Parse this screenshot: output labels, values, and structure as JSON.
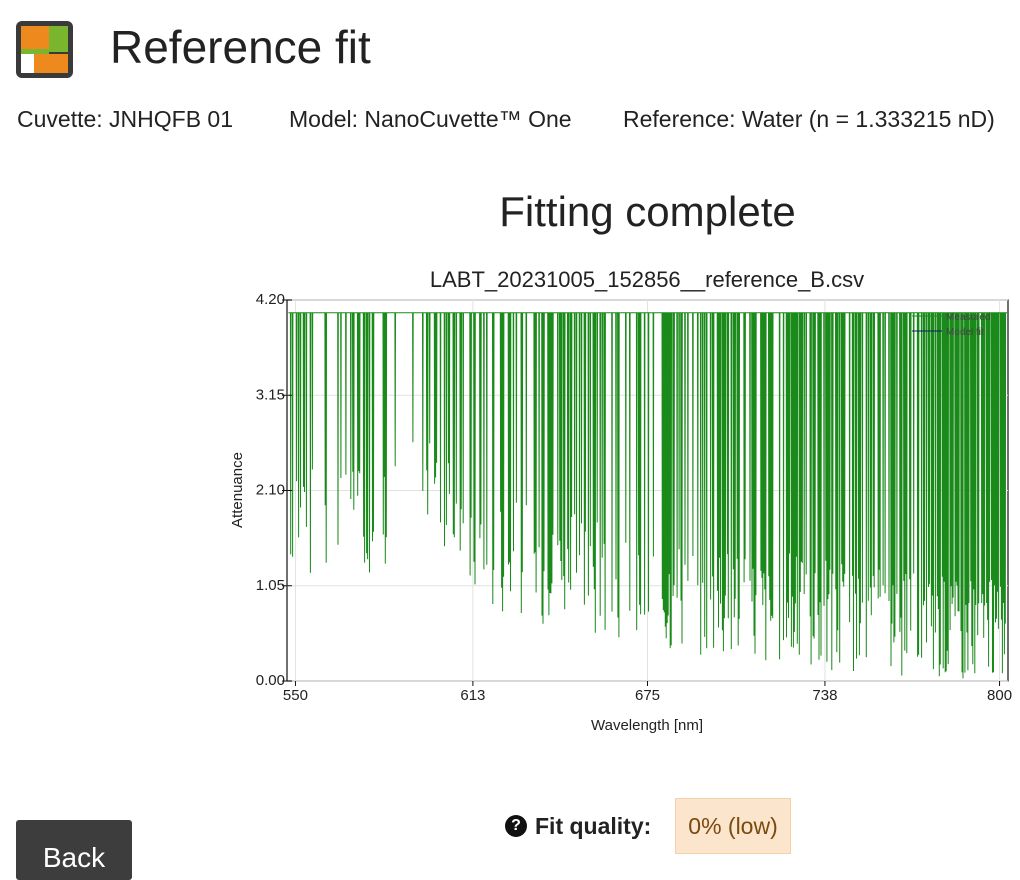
{
  "header": {
    "title": "Reference fit",
    "logo_icon": "app-logo-icon",
    "logo_colors": {
      "orange": "#ee8a1d",
      "green": "#7ab52e",
      "white": "#ffffff",
      "frame": "#3a3a3a"
    }
  },
  "info": {
    "cuvette": "Cuvette: JNHQFB 01",
    "model": "Model: NanoCuvette™ One",
    "reference": "Reference: Water (n = 1.333215 nD)"
  },
  "status": {
    "heading": "Fitting complete"
  },
  "chart_data": {
    "type": "line",
    "title": "LABT_20231005_152856__reference_B.csv",
    "xlabel": "Wavelength [nm]",
    "ylabel": "Attenuance",
    "xlim": [
      547,
      803
    ],
    "ylim": [
      0,
      4.2
    ],
    "x_ticks": [
      550,
      613,
      675,
      738,
      800
    ],
    "x_tick_labels": [
      "550",
      "613",
      "675",
      "738",
      "800"
    ],
    "y_ticks": [
      0,
      1.05,
      2.1,
      3.15,
      4.2
    ],
    "y_tick_labels": [
      "0.00",
      "1.05",
      "2.10",
      "3.15",
      "4.20"
    ],
    "grid": true,
    "legend_position": "top-right",
    "series": [
      {
        "name": "Measured",
        "color": "#1a8a1a",
        "saturation_value": 4.06,
        "description_of_trend": "Mostly saturated near 4.06 with frequent dropouts; dropout floor starts near 0.9 at 550 nm, rises to about 1.8 near 595 nm, then declines toward 0 beyond 700 nm; dropout density increases with wavelength.",
        "floor_profile": {
          "x": [
            547,
            555,
            565,
            575,
            585,
            590,
            595,
            600,
            610,
            620,
            640,
            660,
            680,
            700,
            720,
            740,
            760,
            780,
            800
          ],
          "y": [
            0.8,
            0.95,
            1.05,
            1.0,
            1.4,
            1.7,
            1.8,
            1.5,
            1.0,
            0.8,
            0.6,
            0.45,
            0.35,
            0.25,
            0.15,
            0.1,
            0.05,
            0.03,
            0.02
          ]
        }
      },
      {
        "name": "Model fit",
        "color": "#0a1a6e",
        "values_visible": false
      }
    ]
  },
  "fit_quality": {
    "label": "Fit quality:",
    "value": "0% (low)",
    "help_icon": "question-circle-icon"
  },
  "actions": {
    "back_label": "Back"
  }
}
